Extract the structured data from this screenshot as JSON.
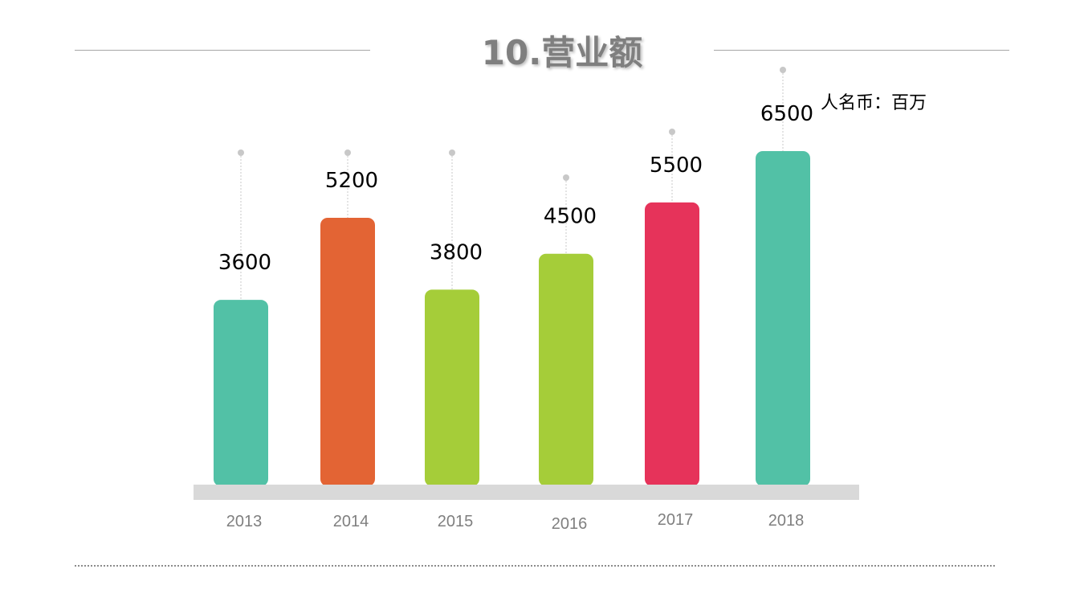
{
  "slide": {
    "title": "10.营业额",
    "unit_note": "人名币：百万"
  },
  "chart_data": {
    "type": "bar",
    "title": "10.营业额",
    "categories": [
      "2013",
      "2014",
      "2015",
      "2016",
      "2017",
      "2018"
    ],
    "values": [
      3600,
      5200,
      3800,
      4500,
      5500,
      6500
    ],
    "colors": [
      "#52c1a6",
      "#e36434",
      "#a5cd39",
      "#a5cd39",
      "#e6335a",
      "#52c1a6"
    ],
    "unit": "人名币：百万",
    "xlabel": "",
    "ylabel": "",
    "ylim": [
      0,
      7000
    ],
    "grid": false,
    "baseline_color": "#d9d9d9",
    "leader_color": "#c8c8c8"
  }
}
